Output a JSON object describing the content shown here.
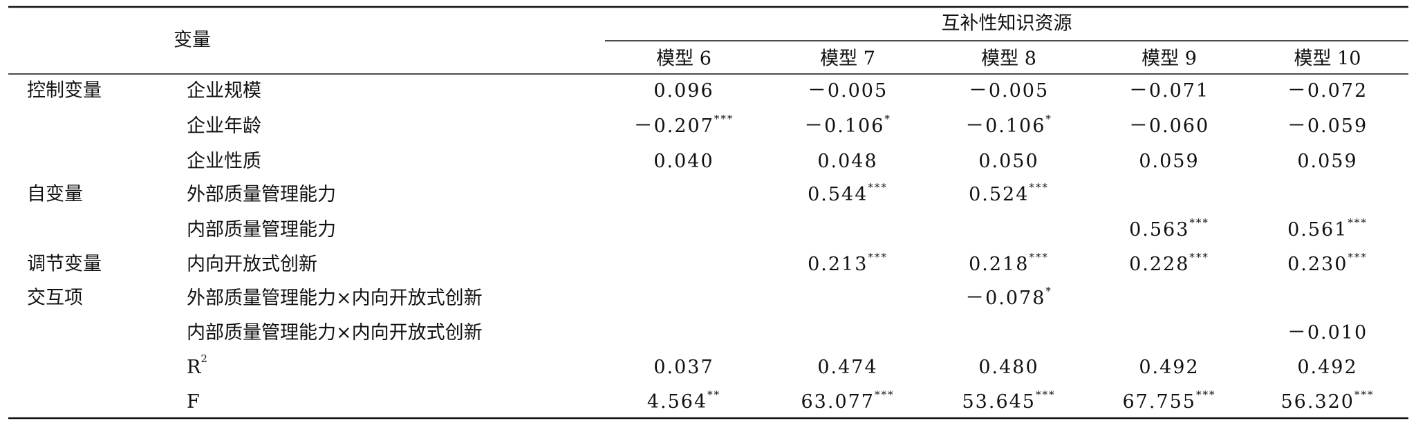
{
  "table": {
    "header": {
      "variable": "变量",
      "group": "互补性知识资源",
      "models": [
        "模型 6",
        "模型 7",
        "模型 8",
        "模型 9",
        "模型 10"
      ]
    },
    "groups": [
      {
        "label": "控制变量",
        "rows": [
          {
            "variable": "企业规模",
            "cells": [
              {
                "value": "0.096"
              },
              {
                "value": "－0.005"
              },
              {
                "value": "－0.005"
              },
              {
                "value": "－0.071"
              },
              {
                "value": "－0.072"
              }
            ]
          },
          {
            "variable": "企业年龄",
            "cells": [
              {
                "value": "－0.207",
                "sig": "***"
              },
              {
                "value": "－0.106",
                "sig": "*"
              },
              {
                "value": "－0.106",
                "sig": "*"
              },
              {
                "value": "－0.060"
              },
              {
                "value": "－0.059"
              }
            ]
          },
          {
            "variable": "企业性质",
            "cells": [
              {
                "value": "0.040"
              },
              {
                "value": "0.048"
              },
              {
                "value": "0.050"
              },
              {
                "value": "0.059"
              },
              {
                "value": "0.059"
              }
            ]
          }
        ]
      },
      {
        "label": "自变量",
        "rows": [
          {
            "variable": "外部质量管理能力",
            "cells": [
              null,
              {
                "value": "0.544",
                "sig": "***"
              },
              {
                "value": "0.524",
                "sig": "***"
              },
              null,
              null
            ]
          },
          {
            "variable": "内部质量管理能力",
            "cells": [
              null,
              null,
              null,
              {
                "value": "0.563",
                "sig": "***"
              },
              {
                "value": "0.561",
                "sig": "***"
              }
            ]
          }
        ]
      },
      {
        "label": "调节变量",
        "rows": [
          {
            "variable": "内向开放式创新",
            "cells": [
              null,
              {
                "value": "0.213",
                "sig": "***"
              },
              {
                "value": "0.218",
                "sig": "***"
              },
              {
                "value": "0.228",
                "sig": "***"
              },
              {
                "value": "0.230",
                "sig": "***"
              }
            ]
          }
        ]
      },
      {
        "label": "交互项",
        "rows": [
          {
            "variable": "外部质量管理能力×内向开放式创新",
            "cells": [
              null,
              null,
              {
                "value": "－0.078",
                "sig": "*"
              },
              null,
              null
            ]
          },
          {
            "variable": "内部质量管理能力×内向开放式创新",
            "cells": [
              null,
              null,
              null,
              null,
              {
                "value": "－0.010"
              }
            ]
          }
        ]
      },
      {
        "label": null,
        "rows": [
          {
            "variable": "R",
            "variable_sup": "2",
            "cells": [
              {
                "value": "0.037"
              },
              {
                "value": "0.474"
              },
              {
                "value": "0.480"
              },
              {
                "value": "0.492"
              },
              {
                "value": "0.492"
              }
            ]
          },
          {
            "variable": "F",
            "cells": [
              {
                "value": "4.564",
                "sig": "**"
              },
              {
                "value": "63.077",
                "sig": "***"
              },
              {
                "value": "53.645",
                "sig": "***"
              },
              {
                "value": "67.755",
                "sig": "***"
              },
              {
                "value": "56.320",
                "sig": "***"
              }
            ]
          }
        ]
      }
    ]
  }
}
